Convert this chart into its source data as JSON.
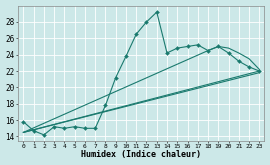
{
  "xlabel": "Humidex (Indice chaleur)",
  "xlim": [
    -0.5,
    23.5
  ],
  "ylim": [
    13.5,
    30
  ],
  "yticks": [
    14,
    16,
    18,
    20,
    22,
    24,
    26,
    28
  ],
  "xticks": [
    0,
    1,
    2,
    3,
    4,
    5,
    6,
    7,
    8,
    9,
    10,
    11,
    12,
    13,
    14,
    15,
    16,
    17,
    18,
    19,
    20,
    21,
    22,
    23
  ],
  "xtick_labels": [
    "0",
    "1",
    "2",
    "3",
    "4",
    "5",
    "6",
    "7",
    "8",
    "9",
    "10",
    "11",
    "12",
    "13",
    "14",
    "15",
    "16",
    "17",
    "18",
    "19",
    "20",
    "21",
    "22",
    "23"
  ],
  "bg_color": "#cce8e8",
  "grid_color": "#ffffff",
  "line_color": "#1a7a6e",
  "markersize": 2.0,
  "linewidth": 0.8,
  "lines": [
    {
      "x": [
        0,
        1,
        2,
        3,
        4,
        5,
        6,
        7,
        8,
        9,
        10,
        11,
        12,
        13,
        14,
        15,
        16,
        17,
        18,
        19,
        20,
        21,
        22,
        23
      ],
      "y": [
        15.8,
        14.7,
        14.2,
        15.2,
        15.0,
        15.2,
        15.0,
        15.0,
        17.8,
        21.2,
        23.8,
        26.5,
        28.0,
        29.2,
        24.2,
        24.8,
        25.0,
        25.2,
        24.5,
        25.0,
        24.2,
        23.2,
        22.5,
        22.0
      ],
      "has_marker": true
    },
    {
      "x": [
        0,
        23
      ],
      "y": [
        14.5,
        22.0
      ],
      "has_marker": false
    },
    {
      "x": [
        0,
        18,
        19,
        20,
        21,
        22,
        23
      ],
      "y": [
        14.5,
        24.5,
        25.0,
        24.8,
        24.2,
        23.5,
        22.2
      ],
      "has_marker": false
    },
    {
      "x": [
        0,
        23
      ],
      "y": [
        14.5,
        21.8
      ],
      "has_marker": false
    }
  ]
}
